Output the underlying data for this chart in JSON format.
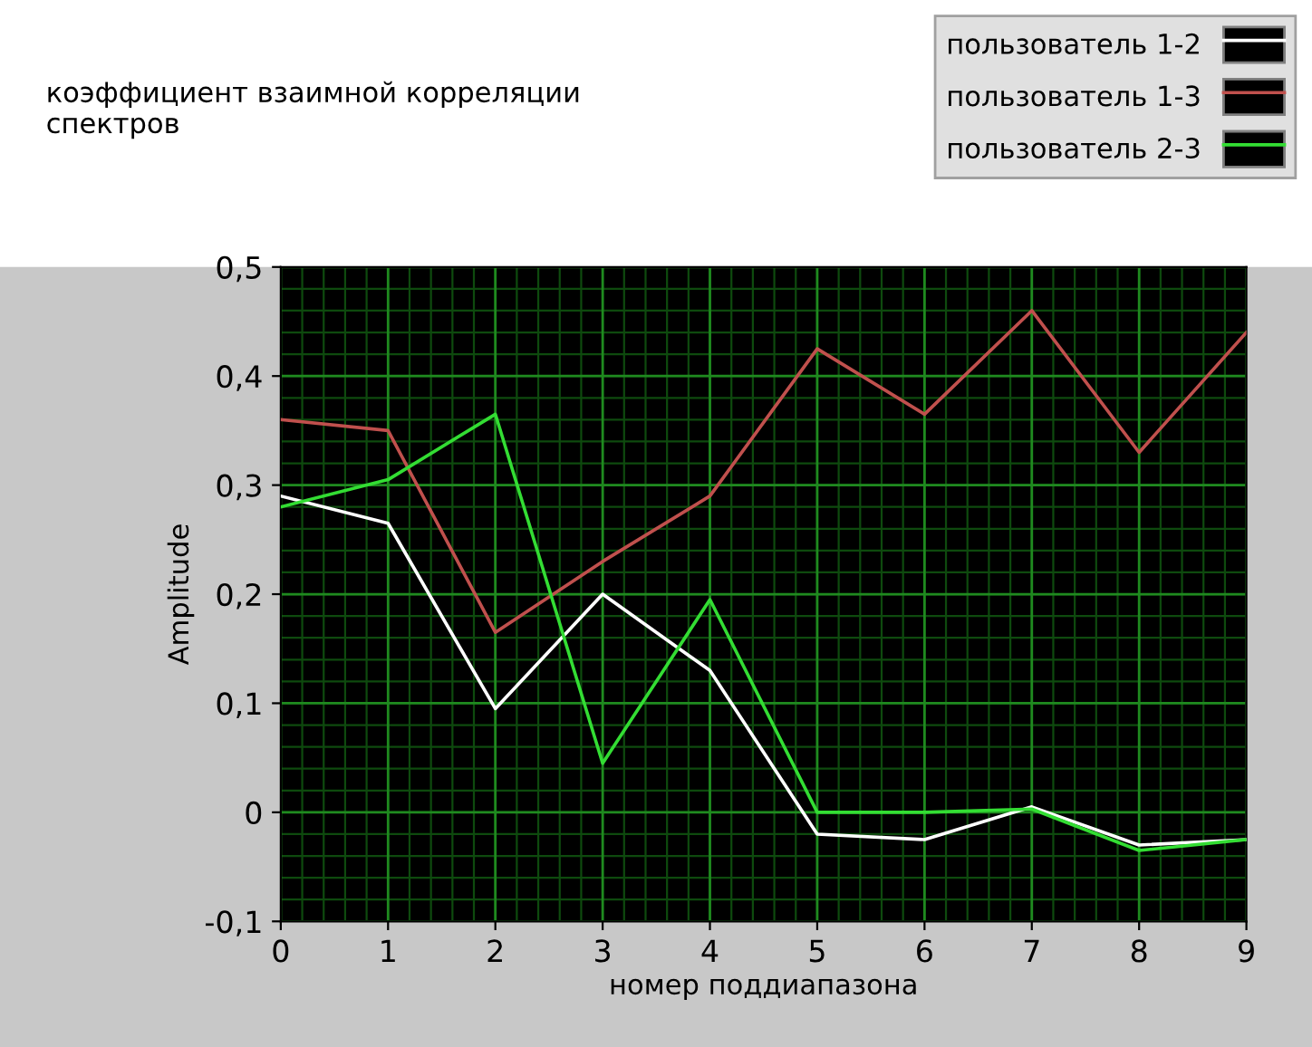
{
  "chart_data": {
    "type": "line",
    "title": "коэффициент взаимной корреляции\nспектров",
    "xlabel": "номер поддиапазона",
    "ylabel": "Amplitude",
    "x": [
      0,
      1,
      2,
      3,
      4,
      5,
      6,
      7,
      8,
      9
    ],
    "series": [
      {
        "name": "пользователь 1-2",
        "color": "#ffffff",
        "values": [
          0.29,
          0.265,
          0.095,
          0.2,
          0.13,
          -0.02,
          -0.025,
          0.005,
          -0.03,
          -0.025
        ]
      },
      {
        "name": "пользователь 1-3",
        "color": "#c0504d",
        "values": [
          0.36,
          0.35,
          0.165,
          0.23,
          0.29,
          0.425,
          0.365,
          0.46,
          0.33,
          0.44
        ]
      },
      {
        "name": "пользователь 2-3",
        "color": "#33dd33",
        "values": [
          0.28,
          0.305,
          0.365,
          0.045,
          0.195,
          0.0,
          0.0,
          0.003,
          -0.035,
          -0.025
        ]
      }
    ],
    "xlim": [
      0,
      9
    ],
    "xticks": [
      0,
      1,
      2,
      3,
      4,
      5,
      6,
      7,
      8,
      9
    ],
    "ylim": [
      -0.1,
      0.5
    ],
    "yticks": [
      {
        "value": -0.1,
        "label": "-0,1"
      },
      0,
      {
        "value": 0.1,
        "label": "0,1"
      },
      {
        "value": 0.2,
        "label": "0,2"
      },
      {
        "value": 0.3,
        "label": "0,3"
      },
      {
        "value": 0.4,
        "label": "0,4"
      },
      {
        "value": 0.5,
        "label": "0,5"
      }
    ],
    "grid": true,
    "legend": "top right",
    "marker": "none",
    "line_style": "solid"
  }
}
